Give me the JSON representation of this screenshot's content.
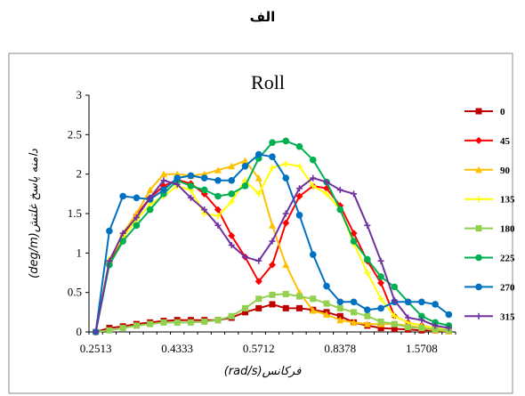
{
  "caption": "الف",
  "chart_data": {
    "type": "line",
    "title": "Roll",
    "xlabel": "(rad/s)فرکانس",
    "ylabel": "(deg/m)دامنه پاسخ غلتش",
    "ylim": [
      0,
      3
    ],
    "yticks": [
      "0",
      "0.5",
      "1",
      "1.5",
      "2",
      "2.5",
      "3"
    ],
    "xtick_labels": [
      "0.2513",
      "0.4333",
      "0.5712",
      "0.8378",
      "1.5708"
    ],
    "xtick_positions": [
      0,
      6,
      12,
      18,
      24
    ],
    "x_count": 27,
    "grid": false,
    "legend_position": "right",
    "series": [
      {
        "name": "0",
        "color": "#c00000",
        "marker": "square",
        "values": [
          0,
          0.05,
          0.07,
          0.1,
          0.12,
          0.14,
          0.15,
          0.15,
          0.15,
          0.15,
          0.18,
          0.25,
          0.3,
          0.35,
          0.3,
          0.3,
          0.28,
          0.25,
          0.2,
          0.12,
          0.08,
          0.05,
          0.04,
          0.03,
          0.02,
          0.02,
          0.01
        ]
      },
      {
        "name": "45",
        "color": "#ff0000",
        "marker": "diamond",
        "values": [
          0,
          0.88,
          1.2,
          1.48,
          1.7,
          1.85,
          1.93,
          1.88,
          1.75,
          1.55,
          1.22,
          0.95,
          0.64,
          0.85,
          1.38,
          1.72,
          1.85,
          1.82,
          1.6,
          1.25,
          0.9,
          0.62,
          0.2,
          0.12,
          0.08,
          0.05,
          0.02
        ]
      },
      {
        "name": "90",
        "color": "#ffc000",
        "marker": "triangle",
        "values": [
          0,
          0.9,
          1.25,
          1.5,
          1.8,
          2.0,
          2.0,
          1.98,
          2.0,
          2.05,
          2.1,
          2.17,
          1.95,
          1.35,
          0.85,
          0.5,
          0.27,
          0.22,
          0.15,
          0.12,
          0.1,
          0.1,
          0.1,
          0.08,
          0.05,
          0.02,
          0.01
        ]
      },
      {
        "name": "135",
        "color": "#ffff00",
        "marker": "cross",
        "values": [
          0,
          0.92,
          1.2,
          1.42,
          1.62,
          1.72,
          1.85,
          1.8,
          1.5,
          1.47,
          1.65,
          1.92,
          1.75,
          2.08,
          2.13,
          2.1,
          1.85,
          1.75,
          1.55,
          1.12,
          0.75,
          0.42,
          0.2,
          0.12,
          0.08,
          0.05,
          0.02
        ]
      },
      {
        "name": "180",
        "color": "#92d050",
        "marker": "square",
        "values": [
          0,
          0.02,
          0.05,
          0.08,
          0.1,
          0.12,
          0.12,
          0.12,
          0.13,
          0.15,
          0.2,
          0.3,
          0.42,
          0.47,
          0.48,
          0.45,
          0.42,
          0.36,
          0.3,
          0.25,
          0.2,
          0.13,
          0.1,
          0.06,
          0.05,
          0.03,
          0.02
        ]
      },
      {
        "name": "225",
        "color": "#00b050",
        "marker": "circle",
        "values": [
          0,
          0.85,
          1.15,
          1.35,
          1.55,
          1.75,
          1.92,
          1.85,
          1.8,
          1.72,
          1.75,
          1.85,
          2.2,
          2.4,
          2.42,
          2.35,
          2.18,
          1.9,
          1.55,
          1.15,
          0.92,
          0.7,
          0.57,
          0.38,
          0.2,
          0.12,
          0.08
        ]
      },
      {
        "name": "270",
        "color": "#0070c0",
        "marker": "circle",
        "values": [
          0,
          1.28,
          1.72,
          1.7,
          1.68,
          1.8,
          1.95,
          1.98,
          1.95,
          1.92,
          1.92,
          2.1,
          2.25,
          2.22,
          1.95,
          1.48,
          0.98,
          0.58,
          0.38,
          0.38,
          0.28,
          0.3,
          0.38,
          0.38,
          0.38,
          0.35,
          0.22
        ]
      },
      {
        "name": "315",
        "color": "#7030a0",
        "marker": "cross",
        "values": [
          0,
          0.9,
          1.25,
          1.45,
          1.7,
          1.92,
          1.87,
          1.7,
          1.55,
          1.35,
          1.1,
          0.95,
          0.9,
          1.15,
          1.5,
          1.82,
          1.95,
          1.9,
          1.8,
          1.75,
          1.35,
          0.9,
          0.4,
          0.18,
          0.15,
          0.08,
          0.05
        ]
      }
    ]
  }
}
